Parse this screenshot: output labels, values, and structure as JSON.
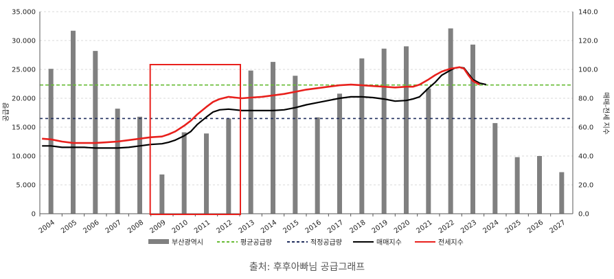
{
  "chart_data": {
    "type": "bar",
    "categories": [
      "2004",
      "2005",
      "2006",
      "2007",
      "2008",
      "2009",
      "2010",
      "2011",
      "2012",
      "2013",
      "2014",
      "2015",
      "2016",
      "2017",
      "2018",
      "2019",
      "2020",
      "2021",
      "2022",
      "2023",
      "2024",
      "2025",
      "2026",
      "2027"
    ],
    "y_left": {
      "label": "공급량",
      "ticks": [
        "0",
        "5.000",
        "10.000",
        "15.000",
        "20.000",
        "25.000",
        "30.000",
        "35.000"
      ],
      "ylim": [
        0,
        35000
      ]
    },
    "y_right": {
      "label": "매매-전세 지수",
      "ticks": [
        "0.0",
        "20.0",
        "40.0",
        "60.0",
        "80.0",
        "100.0",
        "120.0",
        "140.0"
      ],
      "ylim": [
        0,
        140
      ]
    },
    "series": [
      {
        "name": "부산광역시",
        "kind": "bar",
        "axis": "left",
        "color": "#808080",
        "values": [
          25100,
          31700,
          28200,
          18200,
          16800,
          6800,
          14100,
          13900,
          16500,
          24800,
          26300,
          23900,
          16700,
          20800,
          26900,
          28600,
          29000,
          21700,
          32100,
          29300,
          15700,
          9800,
          10000,
          7200
        ]
      },
      {
        "name": "평균공급량",
        "kind": "hline",
        "axis": "left",
        "color": "#66bb33",
        "value": 22300
      },
      {
        "name": "적정공급량",
        "kind": "hline",
        "axis": "left",
        "color": "#1f2d5c",
        "value": 16500
      },
      {
        "name": "매매지수",
        "kind": "line",
        "axis": "right",
        "color": "#000000",
        "x": [
          2003.6,
          2004,
          2004.5,
          2005,
          2005.5,
          2006,
          2006.5,
          2007,
          2007.5,
          2008,
          2008.5,
          2009,
          2009.3,
          2009.6,
          2010,
          2010.3,
          2010.6,
          2011,
          2011.3,
          2011.6,
          2012,
          2012.3,
          2012.6,
          2013,
          2013.5,
          2014,
          2014.5,
          2015,
          2015.5,
          2016,
          2016.5,
          2017,
          2017.5,
          2018,
          2018.5,
          2019,
          2019.5,
          2020,
          2020.3,
          2020.6,
          2021,
          2021.3,
          2021.6,
          2022,
          2022.2,
          2022.4,
          2022.6,
          2022.8,
          2023,
          2023.3,
          2023.6
        ],
        "values": [
          47,
          47,
          46,
          46,
          46,
          45.5,
          45.5,
          45.5,
          46,
          47,
          48,
          48.5,
          49.5,
          51,
          54,
          57,
          62,
          67,
          70.5,
          72,
          72.5,
          72,
          71.5,
          71.5,
          71.5,
          71.5,
          72,
          73.5,
          75.5,
          77,
          78.5,
          80,
          81,
          81,
          80.5,
          79.5,
          78,
          78.5,
          79.5,
          81,
          87,
          91,
          96,
          99.5,
          101,
          101.5,
          101,
          97,
          93,
          90.5,
          89.5
        ]
      },
      {
        "name": "전세지수",
        "kind": "line",
        "axis": "right",
        "color": "#e8201c",
        "x": [
          2003.6,
          2004,
          2004.5,
          2005,
          2005.5,
          2006,
          2006.5,
          2007,
          2007.5,
          2008,
          2008.5,
          2009,
          2009.3,
          2009.6,
          2010,
          2010.3,
          2010.6,
          2011,
          2011.3,
          2011.6,
          2012,
          2012.3,
          2012.6,
          2013,
          2013.5,
          2014,
          2014.5,
          2015,
          2015.5,
          2016,
          2016.5,
          2017,
          2017.5,
          2018,
          2018.5,
          2019,
          2019.5,
          2020,
          2020.3,
          2020.6,
          2021,
          2021.3,
          2021.6,
          2022,
          2022.2,
          2022.4,
          2022.6,
          2022.8,
          2023,
          2023.3
        ],
        "values": [
          52,
          51.5,
          50,
          49,
          49,
          49,
          49.5,
          50,
          51,
          52,
          53,
          53.5,
          55,
          57,
          61,
          64.5,
          69,
          74,
          77.5,
          79.5,
          81,
          80.5,
          80,
          80.5,
          81,
          82,
          83,
          84.5,
          86,
          87,
          88,
          89,
          89.5,
          89,
          88.5,
          88,
          87.5,
          88,
          88,
          89.5,
          93,
          96,
          98.5,
          100.5,
          101,
          101.5,
          100.5,
          96,
          92,
          89.5
        ]
      }
    ],
    "highlight_box": {
      "from": "2009",
      "to": "2012",
      "color": "#e8201c"
    },
    "legend_position": "bottom",
    "grid": "horizontal dashed"
  },
  "caption": "출처: 후후아빠님 공급그래프"
}
